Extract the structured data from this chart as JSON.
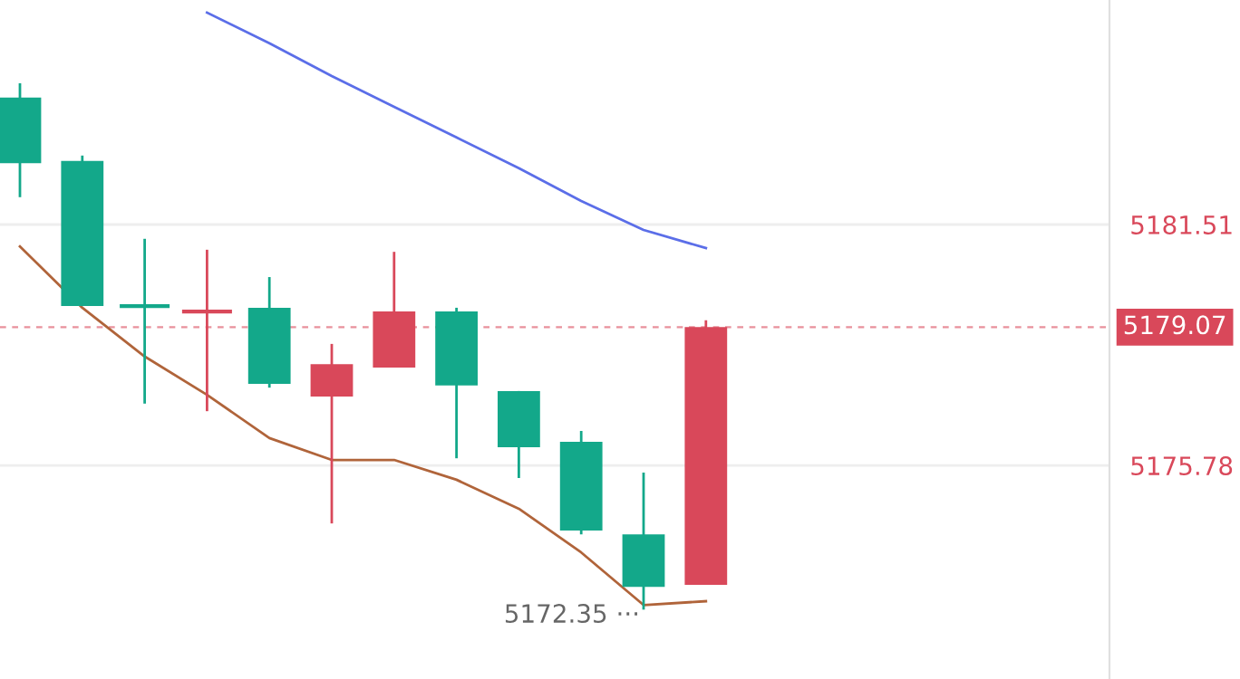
{
  "chart_data": {
    "type": "candlestick",
    "categories": [
      null,
      null,
      null,
      null,
      null,
      null,
      null,
      null,
      null,
      null,
      null,
      null
    ],
    "ylim": [
      5170.7,
      5186.85
    ],
    "yticks": [
      5175.78,
      5181.51
    ],
    "ohlc": [
      [
        5184.53,
        5184.87,
        5182.16,
        5182.97
      ],
      [
        5183.02,
        5183.15,
        5179.57,
        5179.57
      ],
      [
        5179.57,
        5181.17,
        5177.25,
        5179.57
      ],
      [
        5179.44,
        5180.91,
        5177.07,
        5179.44
      ],
      [
        5179.53,
        5180.26,
        5177.63,
        5177.72
      ],
      [
        5177.42,
        5178.67,
        5174.4,
        5178.19
      ],
      [
        5178.11,
        5180.86,
        5178.11,
        5179.44
      ],
      [
        5179.44,
        5179.53,
        5175.95,
        5177.68
      ],
      [
        5177.55,
        5177.55,
        5175.48,
        5176.21
      ],
      [
        5176.34,
        5176.6,
        5174.14,
        5174.23
      ],
      [
        5174.14,
        5175.61,
        5172.35,
        5172.89
      ],
      [
        5172.94,
        5179.23,
        5172.94,
        5179.07
      ]
    ],
    "colors": [
      "#13a88a",
      "#13a88a",
      "#13a88a",
      "#d9485a",
      "#13a88a",
      "#d9485a",
      "#d9485a",
      "#13a88a",
      "#13a88a",
      "#13a88a",
      "#13a88a",
      "#d9485a"
    ],
    "series": [
      {
        "type": "line",
        "color": "#5b6ee8",
        "values": [
          null,
          null,
          null,
          5186.55,
          5185.82,
          5185.04,
          5184.31,
          5183.58,
          5182.85,
          5182.07,
          5181.38,
          5180.95
        ]
      },
      {
        "type": "line",
        "color": "#b0643a",
        "values": [
          5180.99,
          5179.53,
          5178.37,
          5177.46,
          5176.43,
          5175.91,
          5175.91,
          5175.44,
          5174.75,
          5173.71,
          5172.46,
          5172.55
        ]
      }
    ],
    "ref_lines": [
      {
        "axis": "y",
        "value": 5179.07,
        "label": "5179.07",
        "color": "#d9485a",
        "line_style": "dashed"
      }
    ],
    "annotations": [
      "5172.35 ···"
    ],
    "grid": "y",
    "tick_labels": "y"
  }
}
